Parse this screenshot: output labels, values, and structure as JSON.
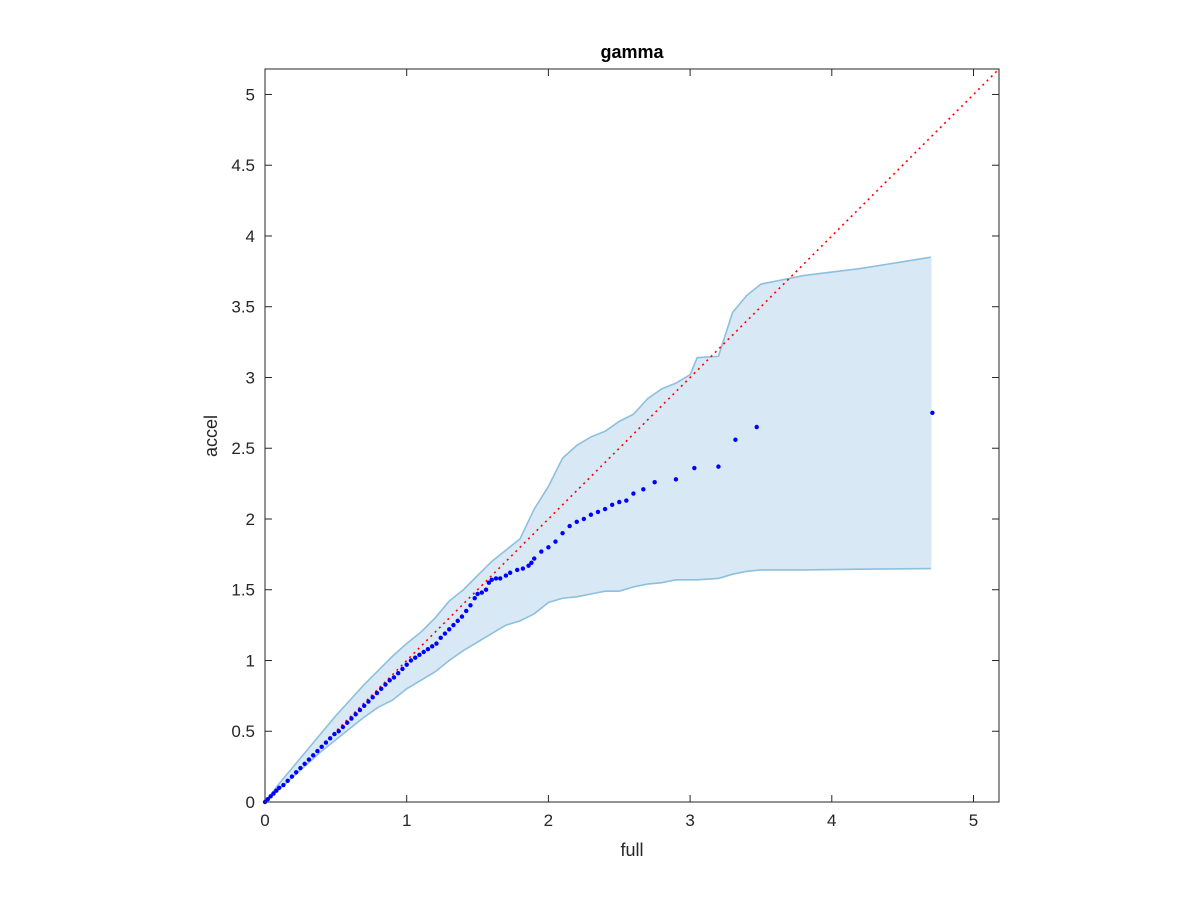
{
  "chart_data": {
    "type": "scatter",
    "title": "gamma",
    "xlabel": "full",
    "ylabel": "accel",
    "xlim": [
      0,
      5.18
    ],
    "ylim": [
      0,
      5.18
    ],
    "xticks": [
      0,
      1,
      2,
      3,
      4,
      5
    ],
    "xtick_labels": [
      "0",
      "1",
      "2",
      "3",
      "4",
      "5"
    ],
    "yticks": [
      0,
      0.5,
      1,
      1.5,
      2,
      2.5,
      3,
      3.5,
      4,
      4.5,
      5
    ],
    "ytick_labels": [
      "0",
      "0.5",
      "1",
      "1.5",
      "2",
      "2.5",
      "3",
      "3.5",
      "4",
      "4.5",
      "5"
    ],
    "grid": false,
    "colors": {
      "points": "#0000ff",
      "reference_line": "#ff0000",
      "band_fill": "#d9e8f5",
      "band_edge": "#8cc0de",
      "axes": "#262626"
    },
    "reference_line": {
      "style": "dotted",
      "x": [
        0,
        5.18
      ],
      "y": [
        0,
        5.18
      ]
    },
    "band": {
      "x": [
        0,
        0.1,
        0.2,
        0.3,
        0.4,
        0.5,
        0.6,
        0.7,
        0.8,
        0.9,
        1.0,
        1.1,
        1.2,
        1.3,
        1.4,
        1.5,
        1.6,
        1.7,
        1.8,
        1.9,
        2.0,
        2.1,
        2.2,
        2.3,
        2.4,
        2.5,
        2.6,
        2.7,
        2.8,
        2.9,
        3.0,
        3.05,
        3.2,
        3.3,
        3.4,
        3.5,
        3.6,
        3.8,
        4.2,
        4.7
      ],
      "upper": [
        0,
        0.13,
        0.25,
        0.37,
        0.49,
        0.61,
        0.72,
        0.83,
        0.93,
        1.03,
        1.12,
        1.2,
        1.3,
        1.42,
        1.5,
        1.6,
        1.7,
        1.78,
        1.86,
        2.07,
        2.23,
        2.43,
        2.52,
        2.58,
        2.62,
        2.69,
        2.74,
        2.85,
        2.92,
        2.96,
        3.02,
        3.14,
        3.15,
        3.46,
        3.58,
        3.66,
        3.68,
        3.72,
        3.77,
        3.85
      ],
      "lower": [
        0,
        0.09,
        0.18,
        0.27,
        0.36,
        0.44,
        0.52,
        0.6,
        0.67,
        0.72,
        0.8,
        0.86,
        0.92,
        1.0,
        1.07,
        1.13,
        1.19,
        1.25,
        1.28,
        1.33,
        1.41,
        1.44,
        1.45,
        1.47,
        1.49,
        1.49,
        1.52,
        1.54,
        1.55,
        1.57,
        1.57,
        1.57,
        1.58,
        1.61,
        1.63,
        1.64,
        1.64,
        1.64,
        1.645,
        1.65
      ]
    },
    "series": [
      {
        "x": [
          0,
          0.02,
          0.04,
          0.06,
          0.08,
          0.1,
          0.13,
          0.16,
          0.19,
          0.22,
          0.25,
          0.28,
          0.31,
          0.34,
          0.37,
          0.4,
          0.43,
          0.46,
          0.49,
          0.52,
          0.55,
          0.58,
          0.61,
          0.64,
          0.67,
          0.7,
          0.73,
          0.76,
          0.79,
          0.82,
          0.85,
          0.88,
          0.91,
          0.94,
          0.97,
          1.0,
          1.03,
          1.06,
          1.09,
          1.12,
          1.15,
          1.18,
          1.21,
          1.24,
          1.27,
          1.3,
          1.33,
          1.36,
          1.39,
          1.42,
          1.45,
          1.48,
          1.5,
          1.53,
          1.56,
          1.58,
          1.6,
          1.63,
          1.66,
          1.7,
          1.73,
          1.78,
          1.82,
          1.86,
          1.88,
          1.9,
          1.95,
          2.0,
          2.05,
          2.1,
          2.15,
          2.2,
          2.25,
          2.3,
          2.35,
          2.4,
          2.45,
          2.5,
          2.55,
          2.6,
          2.67,
          2.75,
          2.9,
          3.03,
          3.2,
          3.32,
          3.47,
          4.71
        ],
        "y": [
          0,
          0.02,
          0.04,
          0.06,
          0.08,
          0.1,
          0.12,
          0.15,
          0.18,
          0.21,
          0.24,
          0.27,
          0.3,
          0.33,
          0.36,
          0.39,
          0.42,
          0.45,
          0.48,
          0.5,
          0.53,
          0.56,
          0.59,
          0.62,
          0.65,
          0.68,
          0.71,
          0.74,
          0.77,
          0.8,
          0.83,
          0.86,
          0.88,
          0.91,
          0.94,
          0.97,
          1.0,
          1.02,
          1.04,
          1.06,
          1.08,
          1.1,
          1.12,
          1.16,
          1.19,
          1.22,
          1.25,
          1.28,
          1.31,
          1.35,
          1.39,
          1.44,
          1.47,
          1.48,
          1.5,
          1.55,
          1.57,
          1.58,
          1.58,
          1.6,
          1.62,
          1.64,
          1.65,
          1.67,
          1.69,
          1.72,
          1.77,
          1.8,
          1.84,
          1.9,
          1.95,
          1.98,
          2.0,
          2.03,
          2.05,
          2.07,
          2.1,
          2.12,
          2.13,
          2.18,
          2.21,
          2.26,
          2.28,
          2.36,
          2.37,
          2.56,
          2.65,
          2.75
        ]
      }
    ]
  }
}
